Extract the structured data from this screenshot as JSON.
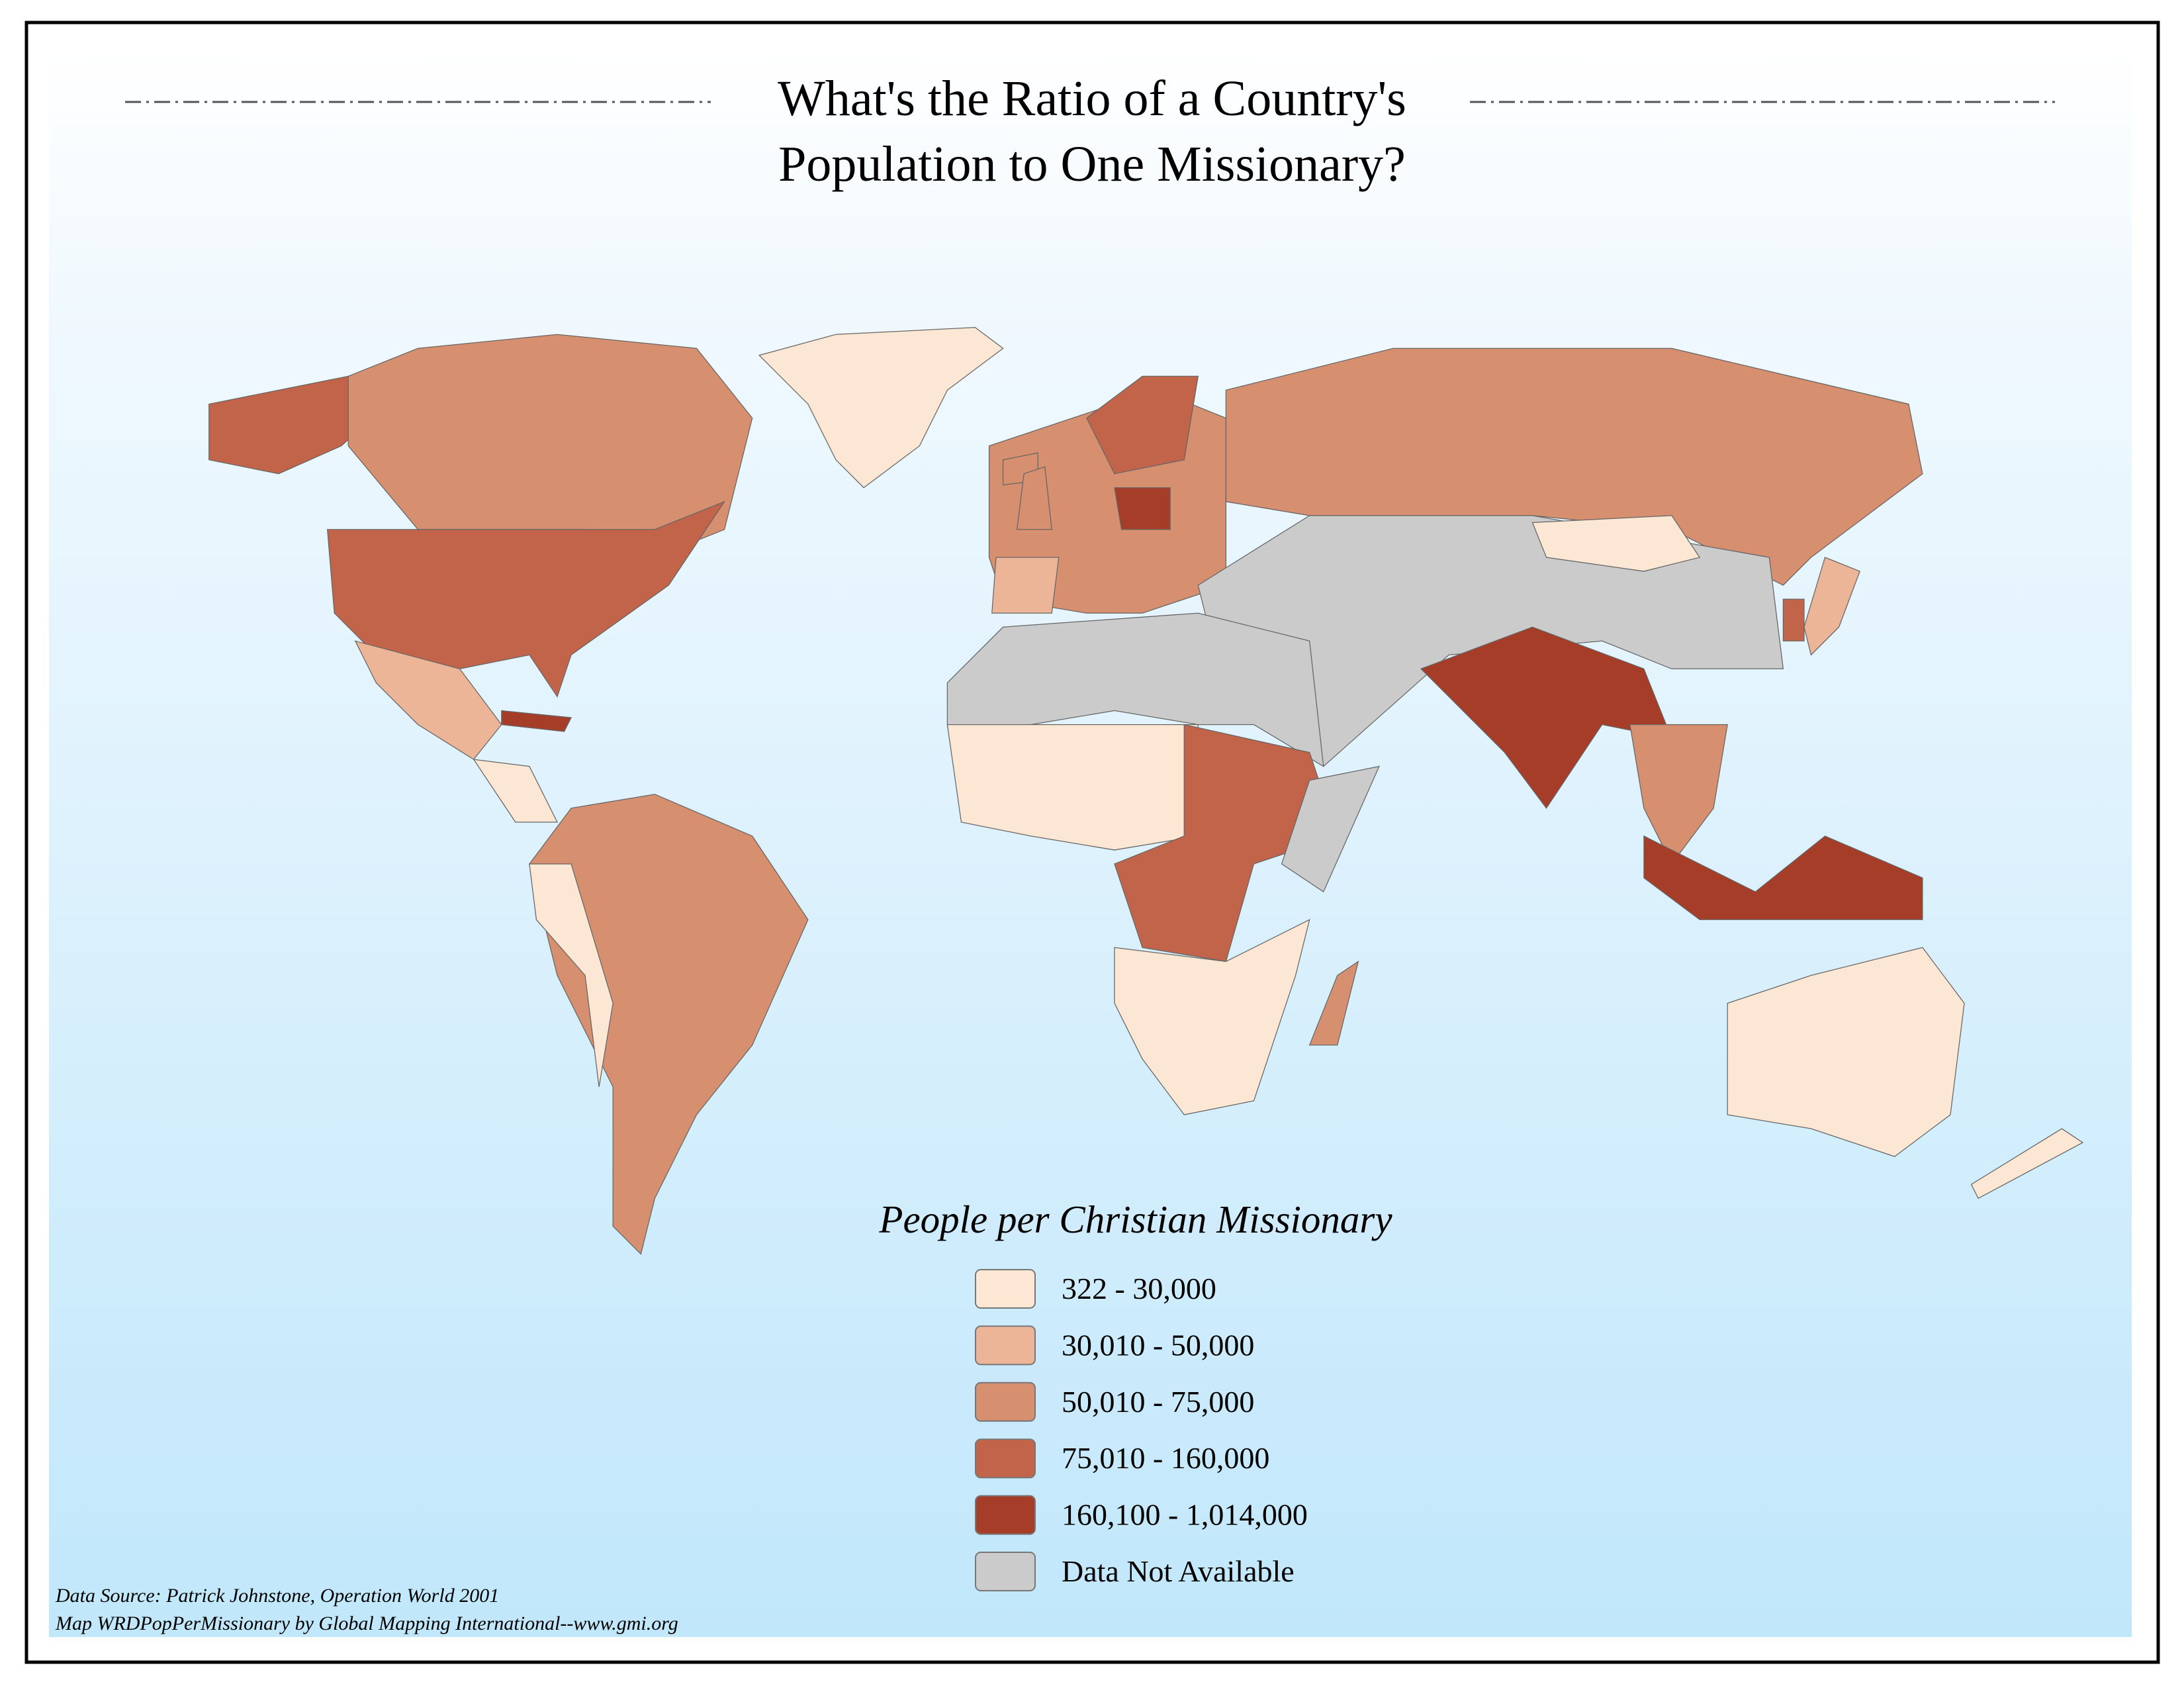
{
  "title": {
    "line1": "What's the Ratio of a Country's",
    "line2": "Population to One Missionary?"
  },
  "legend": {
    "title": "People per Christian Missionary",
    "items": [
      {
        "label": "322 - 30,000",
        "color": "#fbe7d3"
      },
      {
        "label": "30,010 - 50,000",
        "color": "#ecb598"
      },
      {
        "label": "50,010 - 75,000",
        "color": "#d68f6f"
      },
      {
        "label": "75,010 - 160,000",
        "color": "#c2644a"
      },
      {
        "label": "160,100 - 1,014,000",
        "color": "#a63d28"
      },
      {
        "label": "Data Not Available",
        "color": "#cbcbcb"
      }
    ]
  },
  "source": {
    "line1": "Data Source:  Patrick Johnstone, Operation World 2001",
    "line2": "Map WRDPopPerMissionary by Global Mapping International--www.gmi.org"
  }
}
